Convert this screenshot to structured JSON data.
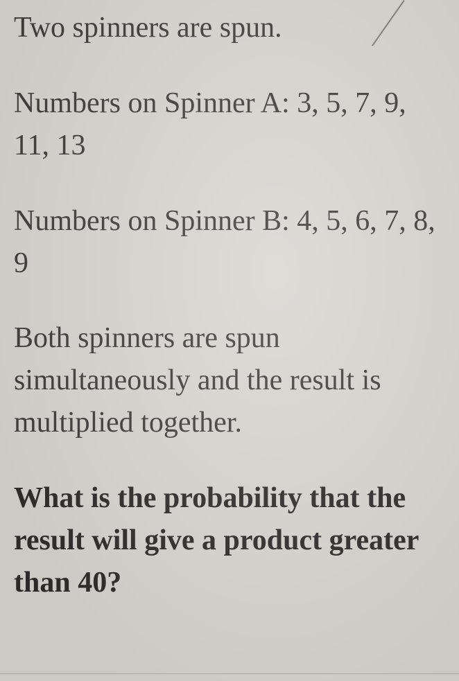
{
  "document": {
    "background_color": "#d8d6d0",
    "text_color": "#3a3a3a",
    "bold_text_color": "#2e2d2a",
    "font_family": "Georgia, serif",
    "font_size_pt": 32,
    "line_height": 1.45,
    "paragraphs": [
      {
        "text": "Two spinners are spun.",
        "bold": false
      },
      {
        "text": "Numbers on Spinner A: 3, 5, 7, 9, 11, 13",
        "bold": false
      },
      {
        "text": "Numbers on Spinner B: 4, 5, 6, 7, 8, 9",
        "bold": false
      },
      {
        "text": "Both spinners are spun simultaneously and the result is multiplied together.",
        "bold": false
      },
      {
        "text": "What is the probability that the result will give a product greater than 40?",
        "bold": true
      }
    ],
    "spinner_a": {
      "label": "Numbers on Spinner A:",
      "values": [
        3,
        5,
        7,
        9,
        11,
        13
      ]
    },
    "spinner_b": {
      "label": "Numbers on Spinner B:",
      "values": [
        4,
        5,
        6,
        7,
        8,
        9
      ]
    },
    "question": "What is the probability that the result will give a product greater than 40?",
    "threshold": 40
  }
}
